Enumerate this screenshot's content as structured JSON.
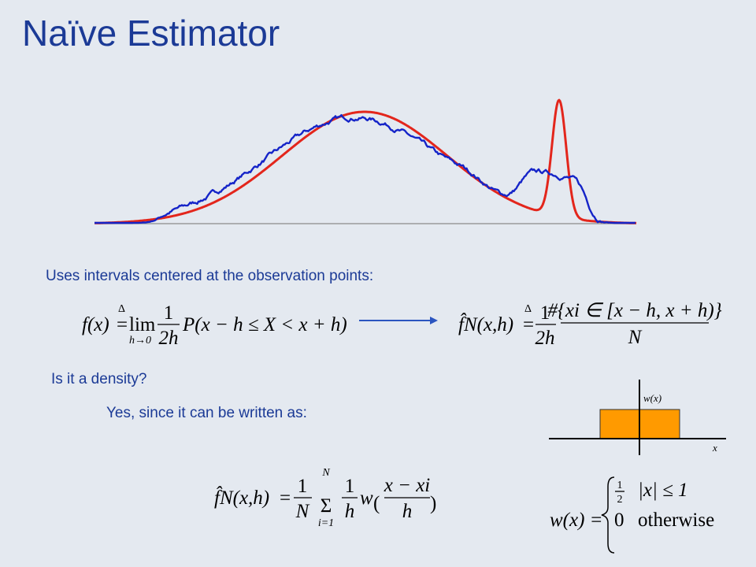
{
  "title": "Naïve Estimator",
  "intro": "Uses intervals centered at the observation points:",
  "question": "Is it a density?",
  "answer": "Yes, since it can be written as:",
  "limit_definition": {
    "lhs": "f(x)",
    "defined_as": "Δ",
    "equals": "=",
    "limit": "lim",
    "limit_sub": "h→0",
    "numerator": "1",
    "denominator": "2h",
    "probability": "P(x − h ≤ X < x + h)"
  },
  "estimator_definition": {
    "lhs": "f̂N(x,h)",
    "defined_as": "Δ",
    "equals": "=",
    "numerator": "1",
    "denominator": "2h",
    "count": "#{xi ∈ [x − h, x + h)}",
    "total": "N"
  },
  "window_plot": {
    "y_label": "w(x)",
    "x_label": "x"
  },
  "kernel_form": {
    "lhs": "f̂N(x,h)",
    "equals": "=",
    "numerator": "1",
    "denominator": "N",
    "sum": "Σ",
    "sum_upper": "N",
    "sum_lower": "i=1",
    "inner_numerator": "1",
    "inner_denominator": "h",
    "window": "w",
    "paren_open": "(",
    "argument_numerator": "x − xi",
    "argument_denominator": "h",
    "paren_close": ")"
  },
  "window_function": {
    "lhs": "w(x) =",
    "case1_numerator": "1",
    "case1_denominator": "2",
    "case1_condition": "|x| ≤ 1",
    "case2_value": "0",
    "case2_condition": "otherwise"
  }
}
